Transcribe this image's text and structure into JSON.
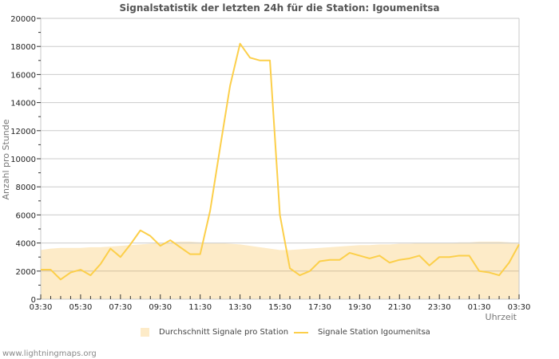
{
  "chart_data": {
    "type": "line",
    "title": "Signalstatistik der letzten 24h für die Station: Igoumenitsa",
    "xlabel": "Uhrzeit",
    "ylabel": "Anzahl pro Stunde",
    "ylim": [
      0,
      20000
    ],
    "yticks": [
      0,
      2000,
      4000,
      6000,
      8000,
      10000,
      12000,
      14000,
      16000,
      18000,
      20000
    ],
    "xticks": [
      "03:30",
      "05:30",
      "07:30",
      "09:30",
      "11:30",
      "13:30",
      "15:30",
      "17:30",
      "19:30",
      "21:30",
      "23:30",
      "01:30",
      "03:30"
    ],
    "grid": true,
    "legend_position": "bottom",
    "x_hours": [
      0,
      0.5,
      1,
      1.5,
      2,
      2.5,
      3,
      3.5,
      4,
      4.5,
      5,
      5.5,
      6,
      6.5,
      7,
      7.5,
      8,
      8.5,
      9,
      9.5,
      10,
      10.5,
      11,
      11.5,
      12,
      12.5,
      13,
      13.5,
      14,
      14.5,
      15,
      15.5,
      16,
      16.5,
      17,
      17.5,
      18,
      18.5,
      19,
      19.5,
      20,
      20.5,
      21,
      21.5,
      22,
      22.5,
      23,
      23.5,
      24
    ],
    "series": [
      {
        "name": "Durchschnitt Signale pro Station",
        "style": "area",
        "color": "#fdebc8",
        "values": [
          3500,
          3600,
          3650,
          3650,
          3650,
          3700,
          3700,
          3750,
          3800,
          3850,
          3900,
          3950,
          4000,
          4050,
          4100,
          4100,
          4050,
          4000,
          4000,
          3950,
          3900,
          3800,
          3700,
          3600,
          3500,
          3500,
          3550,
          3600,
          3650,
          3700,
          3750,
          3800,
          3850,
          3850,
          3900,
          3900,
          3950,
          3950,
          4000,
          4000,
          4000,
          4000,
          4050,
          4050,
          4100,
          4100,
          4100,
          4050,
          4000
        ]
      },
      {
        "name": "Signale Station Igoumenitsa",
        "style": "line",
        "color": "#fccf4a",
        "values": [
          2100,
          2100,
          1400,
          1900,
          2100,
          1700,
          2500,
          3600,
          3000,
          3900,
          4900,
          4500,
          3800,
          4200,
          3700,
          3200,
          3200,
          6300,
          10800,
          15200,
          18200,
          17200,
          17000,
          17000,
          6000,
          2200,
          1700,
          2000,
          2700,
          2800,
          2800,
          3300,
          3100,
          2900,
          3100,
          2600,
          2800,
          2900,
          3100,
          2400,
          3000,
          3000,
          3100,
          3100,
          2000,
          1900,
          1700,
          2600,
          3900
        ]
      }
    ]
  },
  "legend": {
    "area_label": "Durchschnitt Signale pro Station",
    "line_label": "Signale Station Igoumenitsa"
  },
  "footer": "www.lightningmaps.org"
}
